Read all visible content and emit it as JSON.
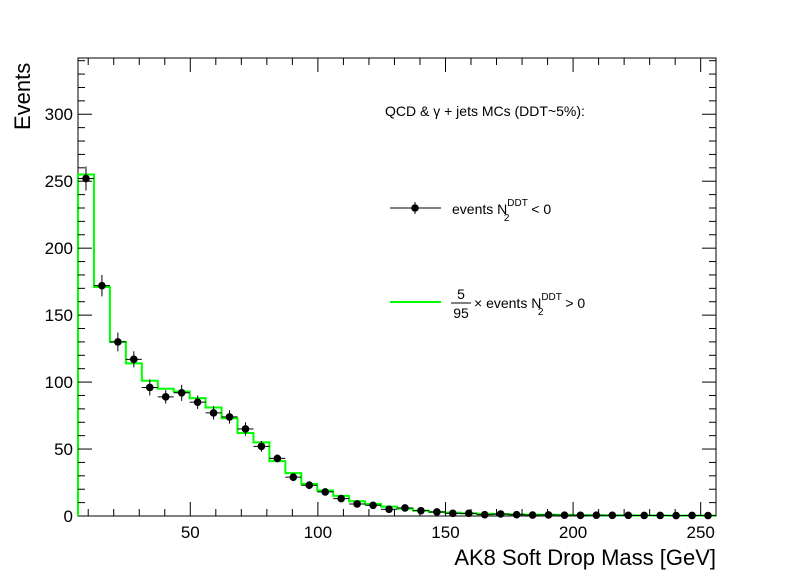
{
  "chart_data": {
    "type": "line",
    "title": "",
    "xlabel": "AK8 Soft Drop Mass [GeV]",
    "ylabel": "Events",
    "xlim": [
      6,
      256
    ],
    "ylim": [
      0,
      342
    ],
    "x_ticks": [
      50,
      100,
      150,
      200,
      250
    ],
    "y_ticks": [
      0,
      50,
      100,
      150,
      200,
      250,
      300
    ],
    "grid": false,
    "legend": {
      "placement": "top-right",
      "header": "QCD & γ + jets MCs (DDT~5%):",
      "entries": [
        {
          "series": 0,
          "marker": "point-errorbar",
          "text": "events N",
          "sub": "2",
          "sup": "DDT",
          "suffix": " < 0"
        },
        {
          "series": 1,
          "marker": "line",
          "frac_num": "5",
          "frac_den": "95",
          "text": "× events N",
          "sub": "2",
          "sup": "DDT",
          "suffix": " > 0"
        }
      ]
    },
    "bin_edges": [
      6,
      12.25,
      18.5,
      24.75,
      31,
      37.25,
      43.5,
      49.75,
      56,
      62.25,
      68.5,
      74.75,
      81,
      87.25,
      93.5,
      99.75,
      106,
      112.25,
      118.5,
      124.75,
      131,
      137.25,
      143.5,
      149.75,
      156,
      162.25,
      168.5,
      174.75,
      181,
      187.25,
      193.5,
      199.75,
      206,
      212.25,
      218.5,
      224.75,
      231,
      237.25,
      243.5,
      249.75,
      256
    ],
    "series": [
      {
        "color": "#000000",
        "style": "points",
        "values": [
          252,
          172,
          130,
          117,
          96,
          89,
          92,
          85,
          77,
          74,
          65,
          52,
          43,
          29,
          23,
          18,
          13,
          9,
          8,
          5,
          6,
          4,
          3,
          2,
          2,
          1,
          1.5,
          1,
          0.7,
          0.8,
          0.6,
          0.5,
          0.6,
          0.5,
          0.5,
          0.4,
          0.4,
          0.3,
          0.4,
          0.3
        ],
        "errors": [
          9,
          8,
          7,
          6,
          6,
          5,
          6,
          5,
          5,
          5,
          5,
          4,
          3,
          3,
          3,
          2.5,
          2,
          2,
          1.5,
          1.5,
          1.5,
          1.2,
          1,
          1,
          0.8,
          0.6,
          0.6,
          0.6,
          0.5,
          0.5,
          0.4,
          0.4,
          0.4,
          0.4,
          0.4,
          0.3,
          0.3,
          0.3,
          0.3,
          0.3
        ]
      },
      {
        "color": "#00ff00",
        "style": "step",
        "values": [
          255,
          171,
          130,
          114,
          101,
          95,
          93,
          88,
          81,
          73,
          62,
          55,
          41,
          32,
          24,
          19,
          15,
          11,
          9,
          7,
          5.5,
          4,
          3,
          2.5,
          2,
          1.7,
          1.4,
          1.2,
          1,
          0.9,
          0.8,
          0.7,
          0.6,
          0.5,
          0.5,
          0.4,
          0.4,
          0.3,
          0.3,
          0.3
        ]
      }
    ]
  }
}
